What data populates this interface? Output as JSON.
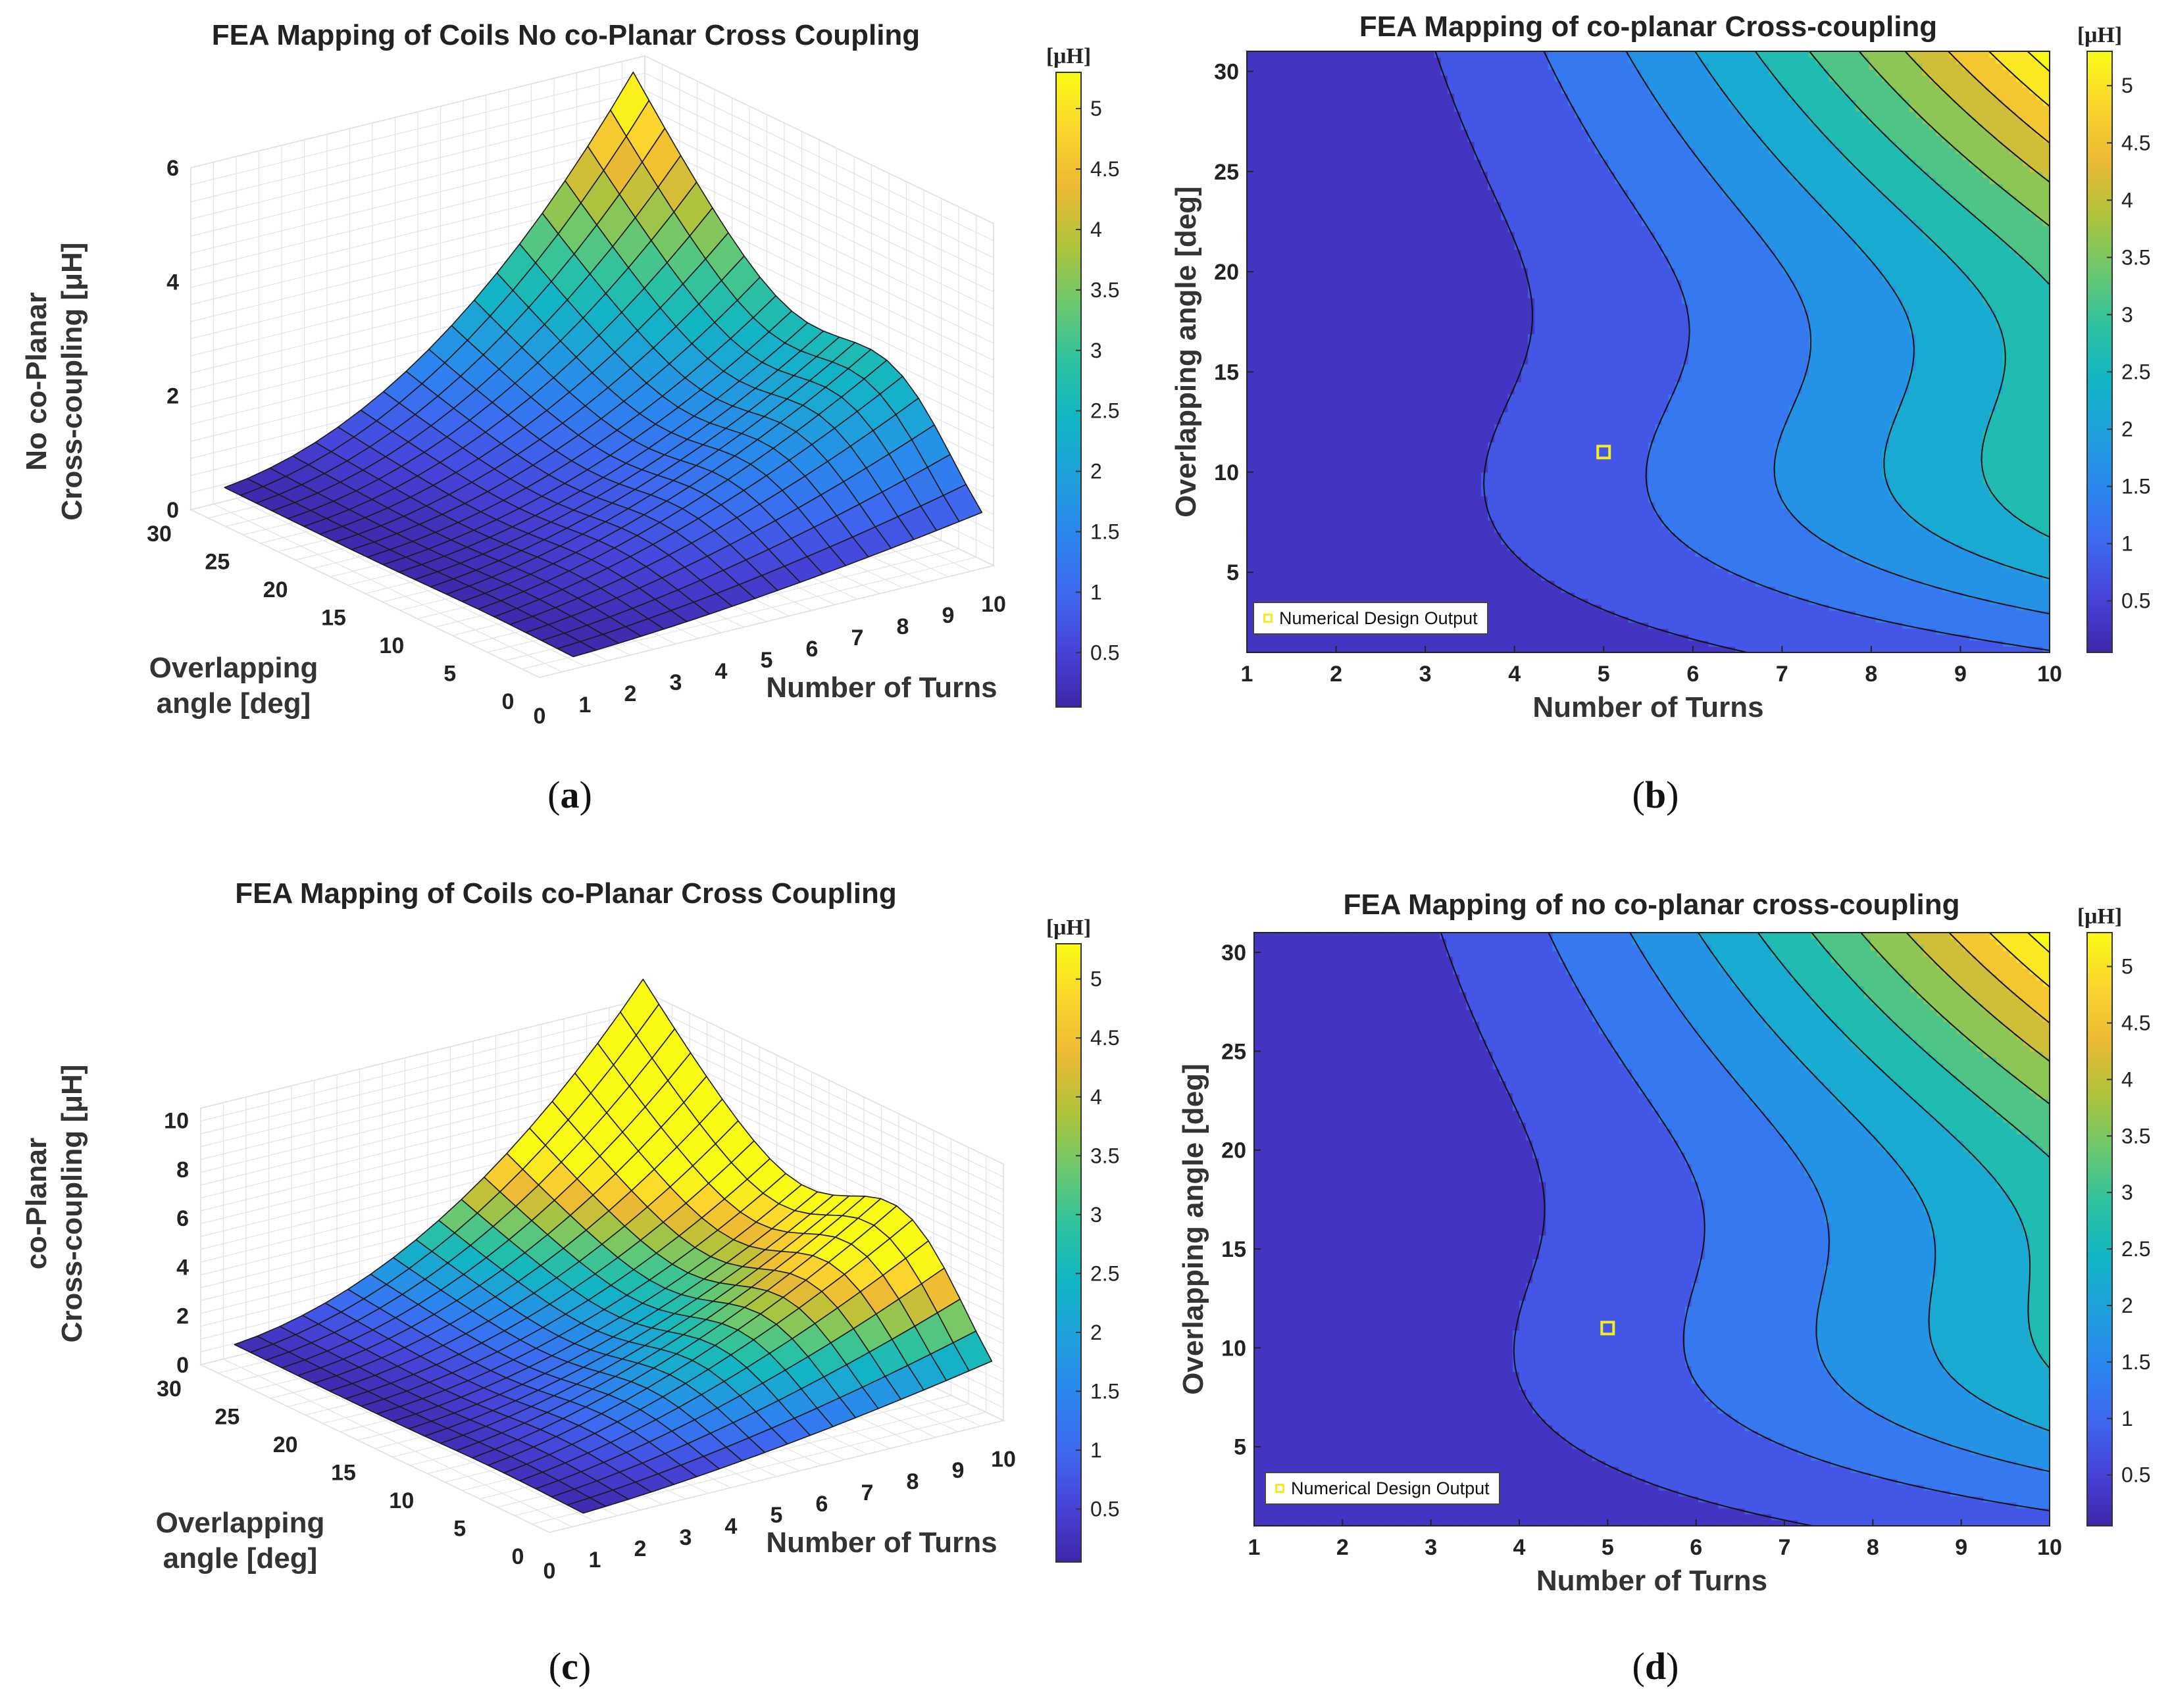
{
  "colors": {
    "parula": [
      "#3e26a8",
      "#4743d9",
      "#3e69f0",
      "#2b86ee",
      "#1fa0dc",
      "#12b5c5",
      "#2ec29f",
      "#6dc86e",
      "#b0c33b",
      "#ecb934",
      "#fbd52e",
      "#f9fb15"
    ],
    "marker": "#f4ee20"
  },
  "captions": [
    {
      "open": "(",
      "letter": "a",
      "close": ")"
    },
    {
      "open": "(",
      "letter": "b",
      "close": ")"
    },
    {
      "open": "(",
      "letter": "c",
      "close": ")"
    },
    {
      "open": "(",
      "letter": "d",
      "close": ")"
    }
  ],
  "chart_data": [
    {
      "id": "a",
      "type": "surface",
      "title": "FEA Mapping of Coils No co-Planar Cross Coupling",
      "xlabel": "Number of Turns",
      "ylabel": [
        "Overlapping",
        "angle [deg]"
      ],
      "zlabel": [
        "No co-Planar",
        "Cross-coupling [μH]"
      ],
      "xlim": [
        0,
        10
      ],
      "ylim": [
        0,
        30
      ],
      "zlim": [
        0,
        6
      ],
      "x_ticks": [
        "0",
        "1",
        "2",
        "3",
        "4",
        "5",
        "6",
        "7",
        "8",
        "9",
        "10"
      ],
      "y_ticks": [
        "0",
        "5",
        "10",
        "15",
        "20",
        "25",
        "30"
      ],
      "z_ticks": [
        "0",
        "2",
        "4",
        "6"
      ],
      "peak_corner_value": 5.3,
      "second_ridge_value": 1.8,
      "colorbar": {
        "unit": "[μH]",
        "ticks": [
          "0.5",
          "1",
          "1.5",
          "2",
          "2.5",
          "3",
          "3.5",
          "4",
          "4.5",
          "5"
        ],
        "range": [
          0.05,
          5.3
        ]
      }
    },
    {
      "id": "b",
      "type": "contour",
      "title": "FEA Mapping of co-planar Cross-coupling",
      "xlabel": "Number of Turns",
      "ylabel": "Overlapping angle [deg]",
      "xlim": [
        1,
        10
      ],
      "ylim": [
        1,
        31
      ],
      "x_ticks": [
        "1",
        "2",
        "3",
        "4",
        "5",
        "6",
        "7",
        "8",
        "9",
        "10"
      ],
      "y_ticks": [
        "5",
        "10",
        "15",
        "20",
        "25",
        "30"
      ],
      "marker": {
        "x": 5,
        "y": 11,
        "label": "Numerical Design Output"
      },
      "colorbar": {
        "unit": "[μH]",
        "ticks": [
          "0.5",
          "1",
          "1.5",
          "2",
          "2.5",
          "3",
          "3.5",
          "4",
          "4.5",
          "5"
        ],
        "range": [
          0.05,
          5.3
        ]
      }
    },
    {
      "id": "c",
      "type": "surface",
      "title": "FEA Mapping of Coils co-Planar Cross Coupling",
      "xlabel": "Number of Turns",
      "ylabel": [
        "Overlapping",
        "angle [deg]"
      ],
      "zlabel": [
        "co-Planar",
        "Cross-coupling [μH]"
      ],
      "xlim": [
        0,
        10
      ],
      "ylim": [
        0,
        30
      ],
      "zlim": [
        0,
        10.5
      ],
      "x_ticks": [
        "0",
        "1",
        "2",
        "3",
        "4",
        "5",
        "6",
        "7",
        "8",
        "9",
        "10"
      ],
      "y_ticks": [
        "0",
        "5",
        "10",
        "15",
        "20",
        "25",
        "30"
      ],
      "z_ticks": [
        "0",
        "2",
        "4",
        "6",
        "8",
        "10"
      ],
      "peak_corner_value": 10.4,
      "second_ridge_value": 5.0,
      "colorbar": {
        "unit": "[μH]",
        "ticks": [
          "0.5",
          "1",
          "1.5",
          "2",
          "2.5",
          "3",
          "3.5",
          "4",
          "4.5",
          "5"
        ],
        "range": [
          0.05,
          5.3
        ]
      }
    },
    {
      "id": "d",
      "type": "contour",
      "title": "FEA Mapping of no co-planar cross-coupling",
      "xlabel": "Number of Turns",
      "ylabel": "Overlapping angle [deg]",
      "xlim": [
        1,
        10
      ],
      "ylim": [
        1,
        31
      ],
      "x_ticks": [
        "1",
        "2",
        "3",
        "4",
        "5",
        "6",
        "7",
        "8",
        "9",
        "10"
      ],
      "y_ticks": [
        "5",
        "10",
        "15",
        "20",
        "25",
        "30"
      ],
      "marker": {
        "x": 5,
        "y": 11,
        "label": "Numerical Design Output"
      },
      "colorbar": {
        "unit": "[μH]",
        "ticks": [
          "0.5",
          "1",
          "1.5",
          "2",
          "2.5",
          "3",
          "3.5",
          "4",
          "4.5",
          "5"
        ],
        "range": [
          0.05,
          5.3
        ]
      }
    }
  ]
}
